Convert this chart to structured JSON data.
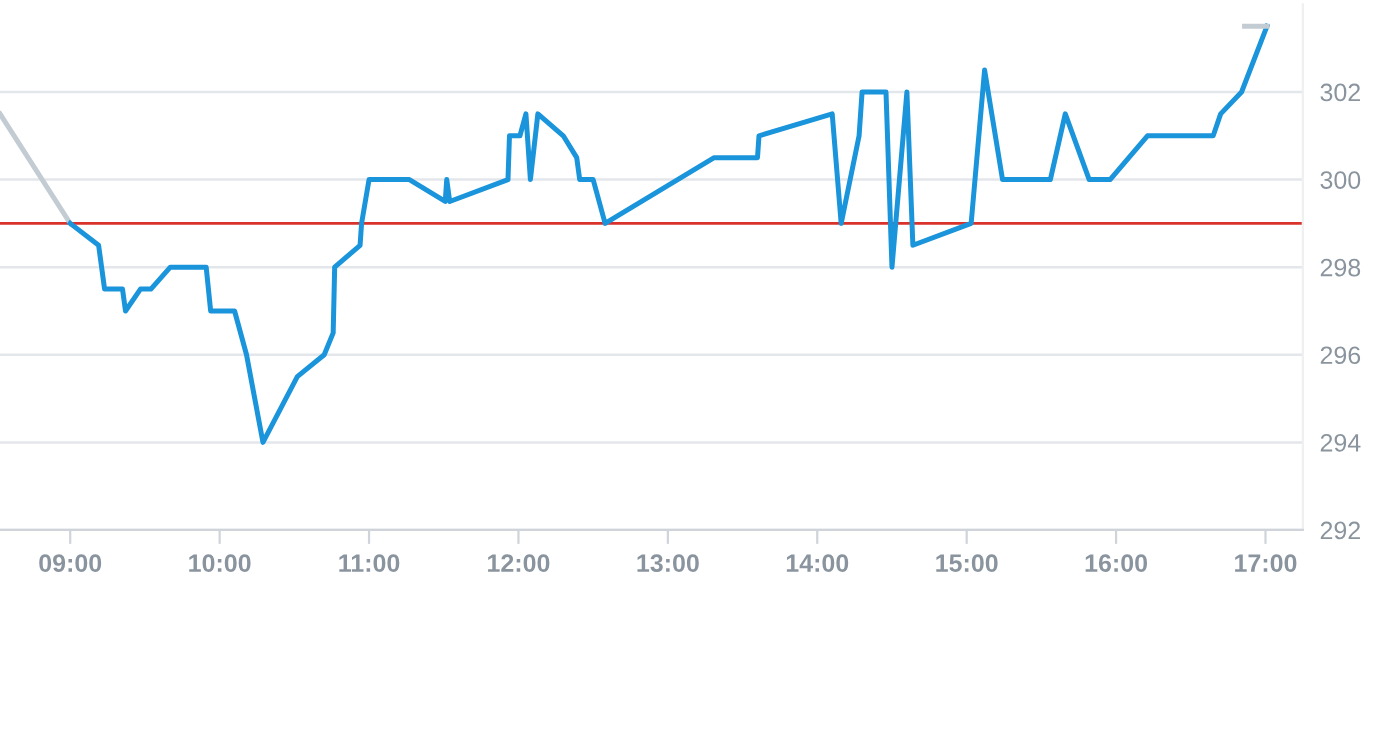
{
  "chart_data": {
    "type": "line",
    "xlim": [
      8.53,
      17.25
    ],
    "ylim": [
      292,
      304
    ],
    "xticks": [
      {
        "value": 9,
        "label": "09:00"
      },
      {
        "value": 10,
        "label": "10:00"
      },
      {
        "value": 11,
        "label": "11:00"
      },
      {
        "value": 12,
        "label": "12:00"
      },
      {
        "value": 13,
        "label": "13:00"
      },
      {
        "value": 14,
        "label": "14:00"
      },
      {
        "value": 15,
        "label": "15:00"
      },
      {
        "value": 16,
        "label": "16:00"
      },
      {
        "value": 17,
        "label": "17:00"
      }
    ],
    "yticks": [
      292,
      294,
      296,
      298,
      300,
      302
    ],
    "grid": "y",
    "legend": false,
    "marker": "none",
    "line_style": "solid",
    "ref_lines": [
      {
        "axis": "y",
        "value": 299,
        "color": "#d9322b"
      }
    ],
    "series": [
      {
        "color": "#c3cbd3",
        "x": [
          8.53,
          9.0
        ],
        "values": [
          301.5,
          299.0
        ]
      },
      {
        "color": "#1a94db",
        "x": [
          9.0,
          9.19,
          9.23,
          9.35,
          9.37,
          9.47,
          9.54,
          9.67,
          9.91,
          9.94,
          10.1,
          10.18,
          10.29,
          10.52,
          10.7,
          10.76,
          10.77,
          10.94,
          10.95,
          11.0,
          11.27,
          11.51,
          11.52,
          11.54,
          11.93,
          11.94,
          12.01,
          12.05,
          12.08,
          12.13,
          12.3,
          12.39,
          12.41,
          12.5,
          12.58,
          13.31,
          13.6,
          13.61,
          14.1,
          14.16,
          14.28,
          14.3,
          14.46,
          14.5,
          14.6,
          14.64,
          15.03,
          15.12,
          15.24,
          15.56,
          15.66,
          15.82,
          15.96,
          16.21,
          16.65,
          16.7,
          16.84,
          17.01
        ],
        "values": [
          299.0,
          298.5,
          297.5,
          297.5,
          297.0,
          297.5,
          297.5,
          298.0,
          298.0,
          297.0,
          297.0,
          296.0,
          294.0,
          295.5,
          296.0,
          296.5,
          298.0,
          298.5,
          299.0,
          300.0,
          300.0,
          299.5,
          300.0,
          299.5,
          300.0,
          301.0,
          301.0,
          301.5,
          300.0,
          301.5,
          301.0,
          300.5,
          300.0,
          300.0,
          299.0,
          300.5,
          300.5,
          301.0,
          301.5,
          299.0,
          301.0,
          302.0,
          302.0,
          298.0,
          302.0,
          298.5,
          299.0,
          302.5,
          300.0,
          300.0,
          301.5,
          300.0,
          300.0,
          301.0,
          301.0,
          301.5,
          302.0,
          303.5
        ]
      },
      {
        "color": "#c3cbd3",
        "x": [
          16.86,
          17.01
        ],
        "values": [
          303.5,
          303.5
        ]
      }
    ]
  }
}
